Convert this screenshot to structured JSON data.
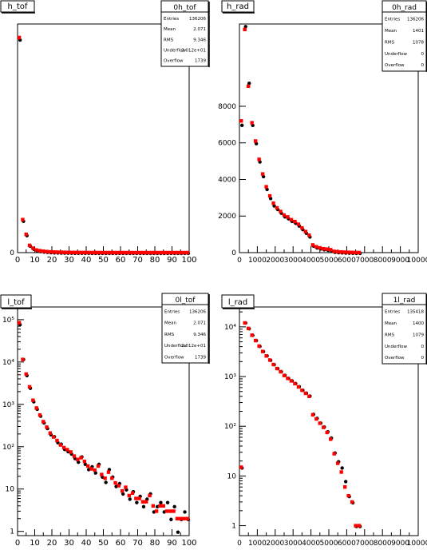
{
  "chart_data": [
    {
      "type": "scatter",
      "title": "h_tof",
      "stats": {
        "name": "0h_tof",
        "rows": [
          {
            "label": "Entries",
            "value": "136206"
          },
          {
            "label": "Mean",
            "value": "2.071"
          },
          {
            "label": "RMS",
            "value": "9.346"
          },
          {
            "label": "Underflow",
            "value": "2.012e+01"
          },
          {
            "label": "Overflow",
            "value": "1739"
          }
        ]
      },
      "log_y": false,
      "xlim": [
        0,
        100
      ],
      "ylim": [
        0,
        13500
      ],
      "xticks": [
        0,
        10,
        20,
        30,
        40,
        50,
        60,
        70,
        80,
        90,
        100
      ],
      "yticks": [
        0
      ],
      "series": [
        {
          "color": "#000000",
          "x": [
            1,
            3,
            5,
            7,
            9,
            11,
            13,
            15,
            17,
            19,
            21,
            23,
            25,
            27,
            29,
            31,
            33,
            35,
            37,
            39,
            41,
            43,
            45,
            47,
            49,
            51,
            53,
            55,
            57,
            59,
            61,
            63,
            65,
            67,
            69,
            71,
            73,
            75,
            77,
            79,
            81,
            83,
            85,
            87,
            89,
            91,
            93,
            95,
            97,
            99
          ],
          "y": [
            12600,
            1900,
            1050,
            420,
            250,
            150,
            110,
            80,
            60,
            45,
            35,
            28,
            22,
            18,
            15,
            12,
            10,
            9,
            8,
            7,
            6,
            5,
            5,
            4,
            4,
            3,
            3,
            3,
            3,
            2,
            2,
            2,
            2,
            2,
            2,
            2,
            2,
            2,
            2,
            2,
            2,
            2,
            2,
            2,
            2,
            2,
            2,
            2,
            2,
            2
          ]
        },
        {
          "color": "#ff0000",
          "x": [
            1,
            3,
            5,
            7,
            9,
            11,
            13,
            15,
            17,
            19,
            21,
            23,
            25,
            27,
            29,
            31,
            33,
            35,
            37,
            39,
            41,
            43,
            45,
            47,
            49,
            51,
            53,
            55,
            57,
            59,
            61,
            63,
            65,
            67,
            69,
            71,
            73,
            75,
            77,
            79,
            81,
            83,
            85,
            87,
            89,
            91,
            93,
            95,
            97,
            99
          ],
          "y": [
            12700,
            1950,
            1080,
            430,
            260,
            155,
            112,
            82,
            62,
            46,
            36,
            29,
            23,
            19,
            15,
            12,
            10,
            9,
            8,
            7,
            6,
            5,
            5,
            4,
            4,
            3,
            3,
            3,
            3,
            2,
            2,
            2,
            2,
            2,
            2,
            2,
            2,
            2,
            2,
            2,
            2,
            2,
            2,
            2,
            2,
            2,
            2,
            2,
            2,
            2
          ]
        }
      ]
    },
    {
      "type": "scatter",
      "title": "h_rad",
      "stats": {
        "name": "0h_rad",
        "rows": [
          {
            "label": "Entries",
            "value": "136206"
          },
          {
            "label": "Mean",
            "value": "1401"
          },
          {
            "label": "RMS",
            "value": "1078"
          },
          {
            "label": "Underflow",
            "value": "0"
          },
          {
            "label": "Overflow",
            "value": "0"
          }
        ]
      },
      "log_y": false,
      "xlim": [
        0,
        10000
      ],
      "ylim": [
        0,
        12500
      ],
      "xticks": [
        0,
        1000,
        2000,
        3000,
        4000,
        5000,
        6000,
        7000,
        8000,
        9000,
        10000
      ],
      "xtick_labels": [
        "0",
        "1000",
        "2000",
        "3000",
        "4000",
        "5000",
        "6000",
        "7000",
        "8000",
        "9000",
        "10000"
      ],
      "yticks": [
        0,
        2000,
        4000,
        6000,
        8000
      ],
      "series": [
        {
          "color": "#000000",
          "x": [
            100,
            300,
            500,
            700,
            900,
            1100,
            1300,
            1500,
            1700,
            1900,
            2100,
            2300,
            2500,
            2700,
            2900,
            3100,
            3300,
            3500,
            3700,
            3900,
            4100,
            4300,
            4500,
            4700,
            4900,
            5100,
            5300,
            5500,
            5700,
            5900,
            6100,
            6300,
            6500,
            6700
          ],
          "y": [
            7000,
            12400,
            9300,
            7000,
            6000,
            5000,
            4200,
            3500,
            3000,
            2600,
            2400,
            2200,
            2000,
            1900,
            1750,
            1650,
            1500,
            1300,
            1100,
            900,
            400,
            300,
            250,
            200,
            180,
            150,
            60,
            40,
            30,
            20,
            15,
            10,
            5,
            3
          ]
        },
        {
          "color": "#ff0000",
          "x": [
            100,
            300,
            500,
            700,
            900,
            1100,
            1300,
            1500,
            1700,
            1900,
            2100,
            2300,
            2500,
            2700,
            2900,
            3100,
            3300,
            3500,
            3700,
            3900,
            4100,
            4300,
            4500,
            4700,
            4900,
            5100,
            5300,
            5500,
            5700,
            5900,
            6100,
            6300,
            6500,
            6700
          ],
          "y": [
            7200,
            12200,
            9100,
            7100,
            6100,
            5100,
            4300,
            3600,
            3100,
            2700,
            2450,
            2250,
            2050,
            1950,
            1800,
            1700,
            1550,
            1350,
            1150,
            950,
            420,
            320,
            260,
            210,
            190,
            160,
            70,
            45,
            35,
            25,
            18,
            12,
            6,
            4
          ]
        }
      ]
    },
    {
      "type": "scatter",
      "title": "l_tof",
      "stats": {
        "name": "0l_tof",
        "rows": [
          {
            "label": "Entries",
            "value": "136206"
          },
          {
            "label": "Mean",
            "value": "2.071"
          },
          {
            "label": "RMS",
            "value": "9.346"
          },
          {
            "label": "Underflow",
            "value": "2.012e+01"
          },
          {
            "label": "Overflow",
            "value": "1739"
          }
        ]
      },
      "log_y": true,
      "xlim": [
        0,
        100
      ],
      "ylim_log10": [
        -0.1,
        5.3
      ],
      "xticks": [
        0,
        10,
        20,
        30,
        40,
        50,
        60,
        70,
        80,
        90,
        100
      ],
      "yticks_log10": [
        0,
        1,
        2,
        3,
        4,
        5
      ],
      "ytick_labels": [
        "1",
        "10",
        "10²",
        "10³",
        "10⁴",
        "10⁵"
      ],
      "series": [
        {
          "color": "#000000",
          "x": [
            1,
            3,
            5,
            7,
            9,
            11,
            13,
            15,
            17,
            19,
            21,
            23,
            25,
            27,
            29,
            31,
            33,
            35,
            37,
            39,
            41,
            43,
            45,
            47,
            49,
            51,
            53,
            55,
            57,
            59,
            61,
            63,
            65,
            67,
            69,
            71,
            73,
            75,
            77,
            79,
            81,
            83,
            85,
            87,
            89,
            91,
            93,
            95,
            97,
            99
          ],
          "y": [
            80000,
            12000,
            5000,
            2500,
            1200,
            800,
            550,
            380,
            280,
            200,
            180,
            130,
            120,
            90,
            80,
            70,
            55,
            45,
            60,
            40,
            30,
            35,
            25,
            40,
            20,
            15,
            30,
            20,
            12,
            14,
            8,
            10,
            6,
            9,
            5,
            7,
            4,
            6,
            8,
            3,
            4,
            5,
            3,
            5,
            2,
            4,
            1,
            2,
            3,
            2
          ]
        },
        {
          "color": "#ff0000",
          "x": [
            1,
            3,
            5,
            7,
            9,
            11,
            13,
            15,
            17,
            19,
            21,
            23,
            25,
            27,
            29,
            31,
            33,
            35,
            37,
            39,
            41,
            43,
            45,
            47,
            49,
            51,
            53,
            55,
            57,
            59,
            61,
            63,
            65,
            67,
            69,
            71,
            73,
            75,
            77,
            79,
            81,
            83,
            85,
            87,
            89,
            91,
            93,
            95,
            97,
            99
          ],
          "y": [
            85000,
            11500,
            5200,
            2600,
            1250,
            820,
            560,
            390,
            290,
            210,
            170,
            140,
            110,
            95,
            85,
            75,
            60,
            50,
            55,
            45,
            35,
            30,
            28,
            35,
            22,
            18,
            25,
            18,
            14,
            12,
            9,
            11,
            7,
            8,
            6,
            6,
            5,
            5,
            7,
            4,
            3,
            4,
            4,
            3,
            3,
            3,
            2,
            2,
            2,
            2
          ]
        }
      ]
    },
    {
      "type": "scatter",
      "title": "l_rad",
      "stats": {
        "name": "1l_rad",
        "rows": [
          {
            "label": "Entries",
            "value": "135418"
          },
          {
            "label": "Mean",
            "value": "1400"
          },
          {
            "label": "RMS",
            "value": "1079"
          },
          {
            "label": "Underflow",
            "value": "0"
          },
          {
            "label": "Overflow",
            "value": "0"
          }
        ]
      },
      "log_y": true,
      "xlim": [
        0,
        10000
      ],
      "ylim_log10": [
        -0.2,
        4.4
      ],
      "xticks": [
        0,
        1000,
        2000,
        3000,
        4000,
        5000,
        6000,
        7000,
        8000,
        9000,
        10000
      ],
      "xtick_labels": [
        "0",
        "1000",
        "2000",
        "3000",
        "4000",
        "5000",
        "6000",
        "7000",
        "8000",
        "9000",
        "10000"
      ],
      "yticks_log10": [
        0,
        1,
        2,
        3,
        4
      ],
      "ytick_labels": [
        "1",
        "10",
        "10²",
        "10³",
        "10⁴"
      ],
      "series": [
        {
          "color": "#000000",
          "x": [
            100,
            300,
            500,
            700,
            900,
            1100,
            1300,
            1500,
            1700,
            1900,
            2100,
            2300,
            2500,
            2700,
            2900,
            3100,
            3300,
            3500,
            3700,
            3900,
            4100,
            4300,
            4500,
            4700,
            4900,
            5100,
            5300,
            5500,
            5700,
            5900,
            6100,
            6300,
            6500,
            6700
          ],
          "y": [
            15,
            12400,
            9500,
            7000,
            5500,
            4200,
            3300,
            2700,
            2200,
            1800,
            1500,
            1300,
            1100,
            950,
            850,
            750,
            650,
            550,
            480,
            420,
            180,
            150,
            120,
            100,
            80,
            60,
            30,
            20,
            15,
            8,
            4,
            3,
            1,
            1
          ]
        },
        {
          "color": "#ff0000",
          "x": [
            100,
            300,
            500,
            700,
            900,
            1100,
            1300,
            1500,
            1700,
            1900,
            2100,
            2300,
            2500,
            2700,
            2900,
            3100,
            3300,
            3500,
            3700,
            3900,
            4100,
            4300,
            4500,
            4700,
            4900,
            5100,
            5300,
            5500,
            5700,
            5900,
            6100,
            6300,
            6500,
            6700
          ],
          "y": [
            15,
            12000,
            9300,
            6800,
            5300,
            4100,
            3200,
            2600,
            2150,
            1750,
            1450,
            1250,
            1050,
            920,
            820,
            720,
            620,
            530,
            460,
            400,
            170,
            140,
            115,
            95,
            75,
            55,
            28,
            18,
            12,
            6,
            4,
            3,
            1,
            1
          ]
        }
      ]
    }
  ]
}
